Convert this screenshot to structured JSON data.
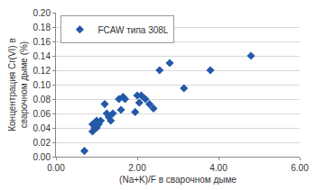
{
  "chart_data": {
    "type": "scatter",
    "x_label": "(Na+K)/F в сварочном дыме",
    "y_label": "Концентрация Cr(VI) в\nсварочном дыме (%)",
    "xlim": [
      0,
      6
    ],
    "xticks": [
      {
        "value": 0,
        "label": "0.00"
      },
      {
        "value": 2,
        "label": "2.00"
      },
      {
        "value": 4,
        "label": "4.00"
      },
      {
        "value": 6,
        "label": "6.00"
      }
    ],
    "ylim": [
      0,
      0.2
    ],
    "yticks": [
      {
        "value": 0,
        "label": "0.00"
      },
      {
        "value": 0.02,
        "label": "0.02"
      },
      {
        "value": 0.04,
        "label": "0.04"
      },
      {
        "value": 0.06,
        "label": "0.06"
      },
      {
        "value": 0.08,
        "label": "0.08"
      },
      {
        "value": 0.1,
        "label": "0.10"
      },
      {
        "value": 0.12,
        "label": "0.12"
      },
      {
        "value": 0.14,
        "label": "0.14"
      },
      {
        "value": 0.16,
        "label": "0.16"
      },
      {
        "value": 0.18,
        "label": "0.18"
      },
      {
        "value": 0.2,
        "label": "0.20"
      }
    ],
    "grid": true,
    "legend": "top-left",
    "series": [
      {
        "name": "FCAW типа 308L",
        "color": "#2458a8",
        "marker": "diamond",
        "x": [
          0.7,
          0.9,
          0.9,
          0.95,
          1.0,
          1.0,
          1.05,
          1.1,
          1.2,
          1.25,
          1.3,
          1.35,
          1.4,
          1.55,
          1.65,
          1.7,
          1.6,
          1.95,
          2.0,
          2.05,
          2.1,
          2.2,
          2.3,
          2.4,
          2.55,
          2.8,
          3.15,
          3.8,
          4.8
        ],
        "values": [
          0.008,
          0.035,
          0.045,
          0.04,
          0.04,
          0.05,
          0.045,
          0.05,
          0.073,
          0.06,
          0.055,
          0.05,
          0.06,
          0.08,
          0.083,
          0.08,
          0.065,
          0.062,
          0.085,
          0.075,
          0.085,
          0.08,
          0.073,
          0.067,
          0.12,
          0.13,
          0.095,
          0.12,
          0.14
        ]
      }
    ]
  }
}
